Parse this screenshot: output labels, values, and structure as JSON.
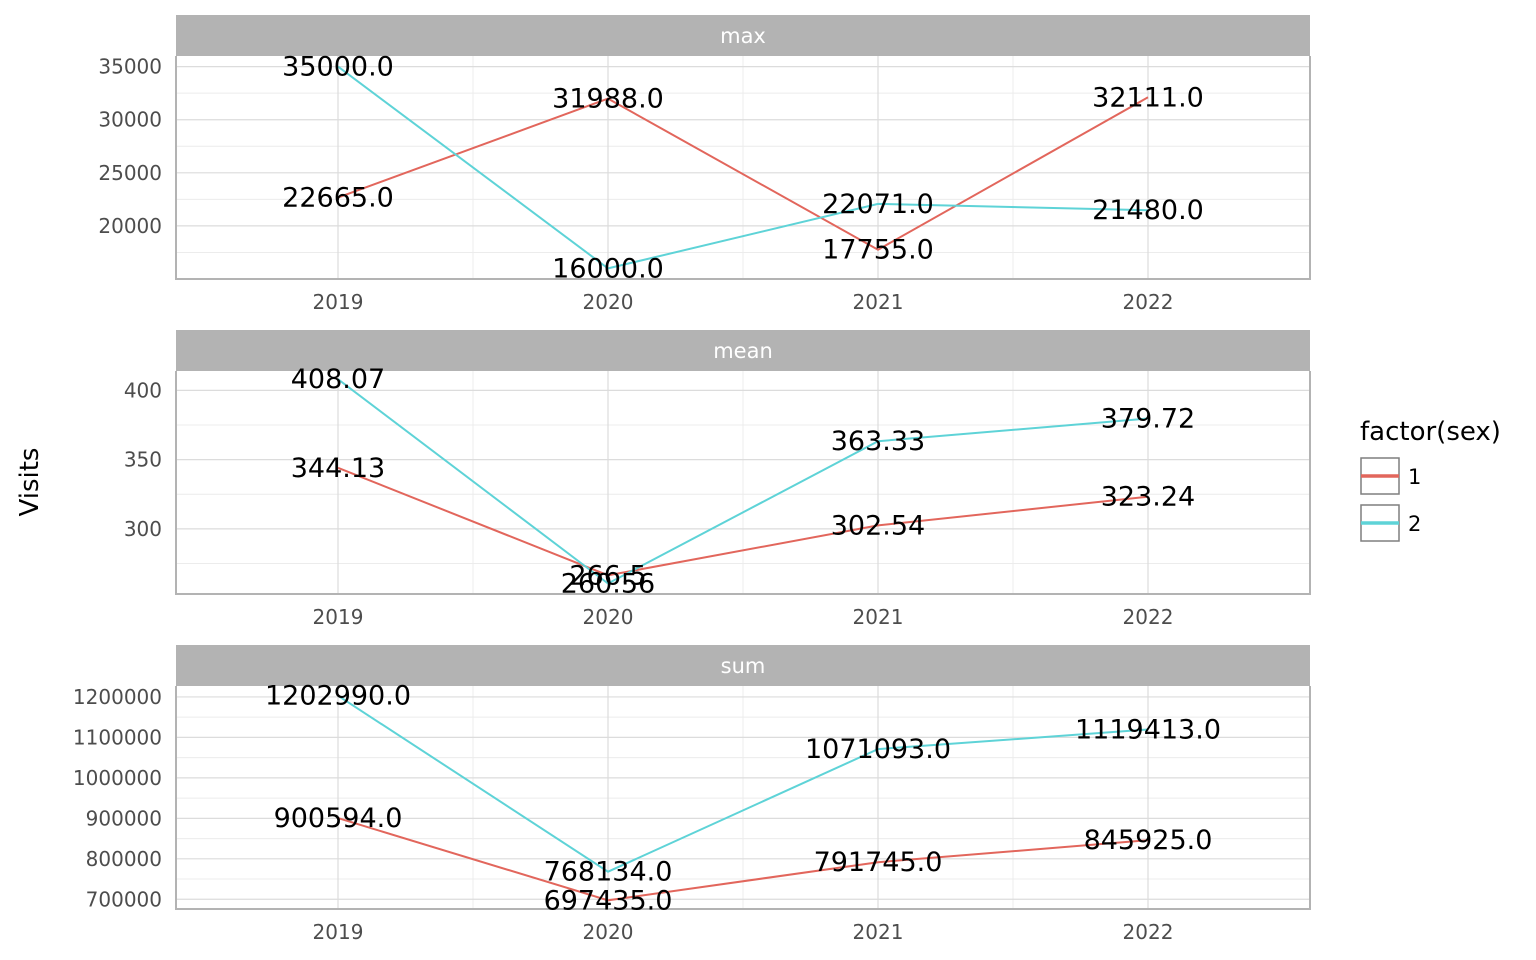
{
  "chart_data": {
    "type": "line",
    "ylabel": "Visits",
    "x": [
      "2019",
      "2020",
      "2021",
      "2022"
    ],
    "legend": {
      "title": "factor(sex)",
      "position": "right",
      "entries": [
        {
          "label": "1",
          "color": "#E2665C"
        },
        {
          "label": "2",
          "color": "#5ED3D7"
        }
      ]
    },
    "panels": [
      {
        "title": "max",
        "ylim": [
          15000,
          36000
        ],
        "yticks": [
          20000,
          25000,
          30000,
          35000
        ],
        "ytick_labels": [
          "20000",
          "25000",
          "30000",
          "35000"
        ],
        "series": [
          {
            "key": "1",
            "values": [
              22665,
              31988,
              17755,
              32111
            ],
            "labels": [
              "22665.0",
              "31988.0",
              "17755.0",
              "32111.0"
            ]
          },
          {
            "key": "2",
            "values": [
              35000,
              16000,
              22071,
              21480
            ],
            "labels": [
              "35000.0",
              "16000.0",
              "22071.0",
              "21480.0"
            ]
          }
        ]
      },
      {
        "title": "mean",
        "ylim": [
          253,
          414
        ],
        "yticks": [
          300,
          350,
          400
        ],
        "ytick_labels": [
          "300",
          "350",
          "400"
        ],
        "series": [
          {
            "key": "1",
            "values": [
              344.13,
              266.5,
              302.54,
              323.24
            ],
            "labels": [
              "344.13",
              "266.5",
              "302.54",
              "323.24"
            ]
          },
          {
            "key": "2",
            "values": [
              408.07,
              260.56,
              363.33,
              379.72
            ],
            "labels": [
              "408.07",
              "260.56",
              "363.33",
              "379.72"
            ]
          }
        ]
      },
      {
        "title": "sum",
        "ylim": [
          676000,
          1227000
        ],
        "yticks": [
          700000,
          800000,
          900000,
          1000000,
          1100000,
          1200000
        ],
        "ytick_labels": [
          "700000",
          "800000",
          "900000",
          "1000000",
          "1100000",
          "1200000"
        ],
        "series": [
          {
            "key": "1",
            "values": [
              900594,
              697435,
              791745,
              845925
            ],
            "labels": [
              "900594.0",
              "697435.0",
              "791745.0",
              "845925.0"
            ]
          },
          {
            "key": "2",
            "values": [
              1202990,
              768134,
              1071093,
              1119413
            ],
            "labels": [
              "1202990.0",
              "768134.0",
              "1071093.0",
              "1119413.0"
            ]
          }
        ]
      }
    ]
  }
}
